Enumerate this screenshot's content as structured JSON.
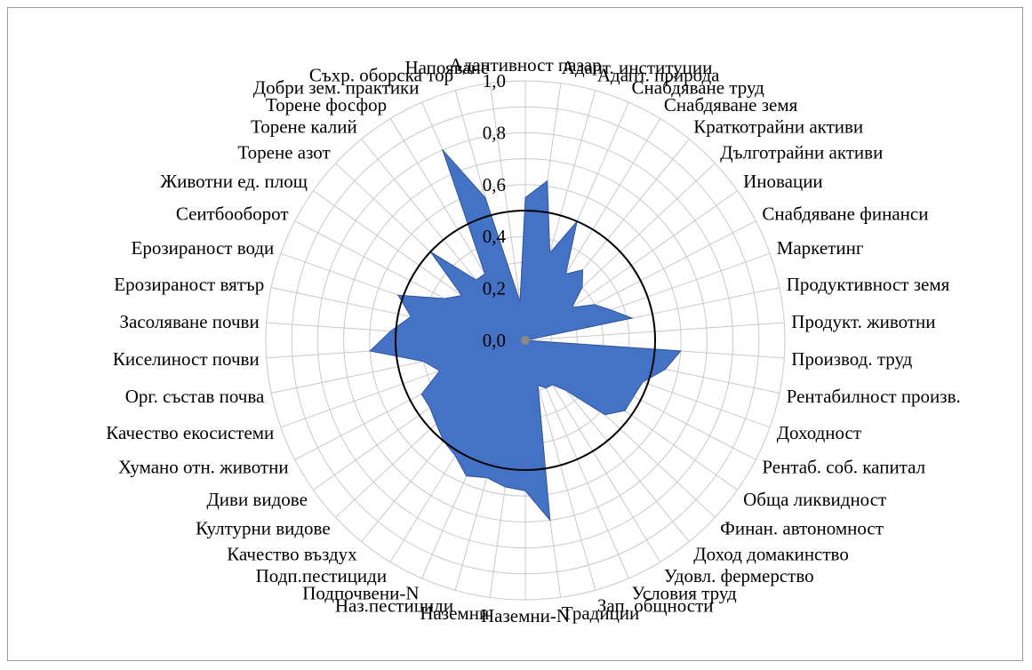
{
  "chart_data": {
    "type": "radar",
    "categories": [
      "Адаптивност пазар",
      "Адапт. институции",
      "Адапт. природа",
      "Снабдяване труд",
      "Снабдяване земя",
      "Краткотрайни активи",
      "Дълготрайни активи",
      "Иновации",
      "Снабдяване финанси",
      "Маркетинг",
      "Продуктивност земя",
      "Продукт. животни",
      "Производ. труд",
      "Рентабилност произв.",
      "Доходност",
      "Рентаб. соб. капитал",
      "Обща ликвидност",
      "Финан. автономност",
      "Доход домакинство",
      "Удовл. фермерство",
      "Условия труд",
      "Зап. общности",
      "Традиции",
      "Наземни-N",
      "Наземни",
      "Наз.пестициди",
      "Подпочвени-N",
      "Подп.пестициди",
      "Качество въздух",
      "Културни видове",
      "Диви видове",
      "Хумано отн. животни",
      "Качество екосистеми",
      "Орг. състав почва",
      "Киселиност почви",
      "Засоляване почви",
      "Ерозираност вятър",
      "Ерозираност води",
      "Сеитбооборот",
      "Животни ед. площ",
      "Торене азот",
      "Торене калий",
      "Торене фосфор",
      "Добри зем. практики",
      "Съхр. оборска тор",
      "Напояване"
    ],
    "series": [
      {
        "values": [
          0.55,
          0.62,
          0.35,
          0.5,
          0.3,
          0.35,
          0.3,
          0.22,
          0.3,
          0.35,
          0.42,
          0.0,
          0.6,
          0.55,
          0.48,
          0.47,
          0.47,
          0.42,
          0.25,
          0.2,
          0.2,
          0.18,
          0.7,
          0.58,
          0.57,
          0.55,
          0.57,
          0.52,
          0.5,
          0.47,
          0.45,
          0.45,
          0.35,
          0.4,
          0.6,
          0.52,
          0.45,
          0.52,
          0.35,
          0.3,
          0.5,
          0.3,
          0.3,
          0.8,
          0.57,
          0.15
        ],
        "color": "#4472c4"
      }
    ],
    "reference_circle": 0.5,
    "r_ticks": [
      "0,0",
      "0,2",
      "0,4",
      "0,6",
      "0,8",
      "1,0"
    ],
    "rlim": [
      0,
      1
    ],
    "grid": true
  }
}
